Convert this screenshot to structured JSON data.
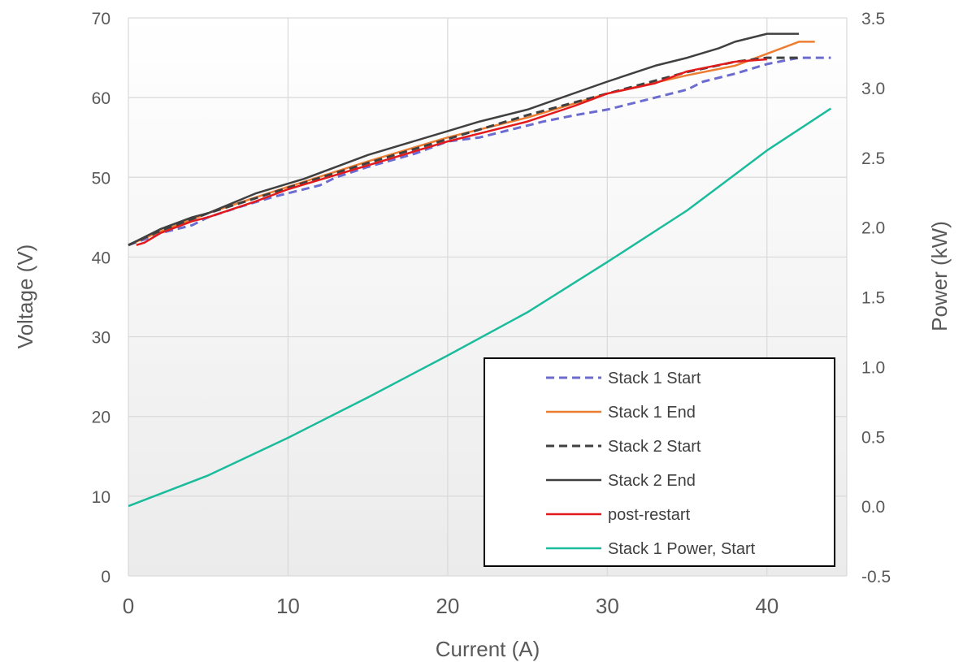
{
  "chart_data": {
    "type": "line",
    "title": "",
    "xlabel": "Current (A)",
    "ylabel": "Voltage (V)",
    "y2label": "Power (kW)",
    "xlim": [
      0,
      45
    ],
    "ylim": [
      0,
      70
    ],
    "y2lim": [
      -0.5,
      3.5
    ],
    "xticks": [
      "0",
      "10",
      "20",
      "30",
      "40"
    ],
    "yticks": [
      "0",
      "10",
      "20",
      "30",
      "40",
      "50",
      "60",
      "70"
    ],
    "y2ticks": [
      "-0.5",
      "0.0",
      "0.5",
      "1.0",
      "1.5",
      "2.0",
      "2.5",
      "3.0",
      "3.5"
    ],
    "grid": true,
    "legend_position": "bottom-right",
    "series": [
      {
        "name": "Stack 1 Start",
        "axis": "left",
        "color": "#6b6bd0",
        "dash": "dashed",
        "x": [
          0,
          1,
          2,
          4,
          5,
          7,
          9,
          10,
          12,
          13,
          15,
          18,
          20,
          22,
          24,
          26,
          28,
          30,
          32,
          34,
          35,
          36,
          38,
          40,
          41,
          42,
          43,
          44
        ],
        "y": [
          41.5,
          42.2,
          43,
          44,
          45,
          46.3,
          47.5,
          48,
          49,
          50,
          51.3,
          53,
          54.5,
          55,
          56,
          57,
          57.8,
          58.5,
          59.5,
          60.5,
          61,
          62,
          63,
          64.2,
          64.6,
          65,
          65,
          65
        ]
      },
      {
        "name": "Stack 1 End",
        "axis": "left",
        "color": "#ed7d31",
        "dash": "solid",
        "x": [
          0,
          2,
          5,
          8,
          10,
          15,
          20,
          25,
          28,
          30,
          35,
          38,
          40,
          42,
          43
        ],
        "y": [
          41.5,
          43.2,
          45.5,
          47.5,
          48.8,
          52,
          55,
          57.5,
          59.3,
          60.5,
          62.8,
          64,
          65.5,
          67,
          67
        ]
      },
      {
        "name": "Stack 2 Start",
        "axis": "left",
        "color": "#404040",
        "dash": "dashed",
        "x": [
          0,
          2,
          5,
          8,
          10,
          15,
          20,
          25,
          30,
          35,
          38,
          40,
          41,
          42
        ],
        "y": [
          41.5,
          43.3,
          45.5,
          47.4,
          48.7,
          51.8,
          54.8,
          57.8,
          60.5,
          63.2,
          64.5,
          65,
          65,
          65
        ]
      },
      {
        "name": "Stack 2 End",
        "axis": "left",
        "color": "#404040",
        "dash": "solid",
        "x": [
          0,
          2,
          4,
          5,
          8,
          10,
          11,
          15,
          20,
          22,
          25,
          30,
          33,
          35,
          37,
          38,
          40,
          41,
          42
        ],
        "y": [
          41.5,
          43.5,
          45,
          45.5,
          48,
          49.2,
          49.8,
          52.8,
          55.8,
          57,
          58.5,
          62,
          64,
          65,
          66.2,
          67,
          68,
          68,
          68
        ]
      },
      {
        "name": "post-restart",
        "axis": "left",
        "color": "#e31a1c",
        "dash": "solid",
        "x": [
          0.5,
          1,
          2,
          4,
          5,
          8,
          10,
          15,
          20,
          25,
          28,
          30,
          33,
          35,
          38,
          40
        ],
        "y": [
          41.5,
          41.8,
          43,
          44.5,
          45,
          47,
          48.5,
          51.5,
          54.5,
          57,
          59,
          60.5,
          61.8,
          63.3,
          64.5,
          64.8
        ]
      },
      {
        "name": "Stack 1 Power, Start",
        "axis": "right",
        "color": "#1abc9c",
        "dash": "solid",
        "x": [
          0,
          5,
          10,
          15,
          20,
          25,
          30,
          35,
          40,
          44
        ],
        "y": [
          0.0,
          0.22,
          0.49,
          0.78,
          1.08,
          1.39,
          1.75,
          2.12,
          2.55,
          2.85
        ]
      }
    ]
  }
}
